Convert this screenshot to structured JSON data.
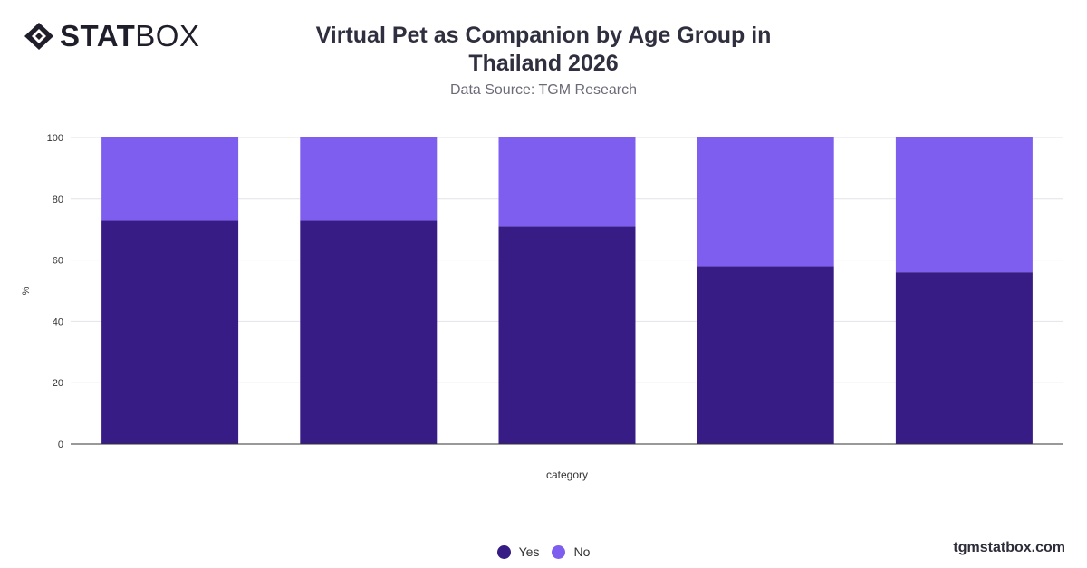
{
  "brand": {
    "bold": "STAT",
    "light": "BOX",
    "url": "tgmstatbox.com"
  },
  "header": {
    "title": "Virtual Pet as Companion by Age Group in Thailand 2026",
    "subtitle": "Data Source: TGM Research"
  },
  "chart_data": {
    "type": "bar",
    "stacked": true,
    "categories": [
      "",
      "",
      "",
      "",
      ""
    ],
    "series": [
      {
        "name": "Yes",
        "color": "#371c85",
        "values": [
          73,
          73,
          71,
          58,
          56
        ]
      },
      {
        "name": "No",
        "color": "#7e5eef",
        "values": [
          27,
          27,
          29,
          42,
          44
        ]
      }
    ],
    "xlabel": "category",
    "ylabel": "%",
    "ylim": [
      0,
      100
    ],
    "yticks": [
      0,
      20,
      40,
      60,
      80,
      100
    ],
    "grid": true,
    "legend_position": "bottom-center"
  },
  "legend": {
    "items": [
      {
        "label": "Yes",
        "color": "#371c85"
      },
      {
        "label": "No",
        "color": "#7e5eef"
      }
    ]
  }
}
